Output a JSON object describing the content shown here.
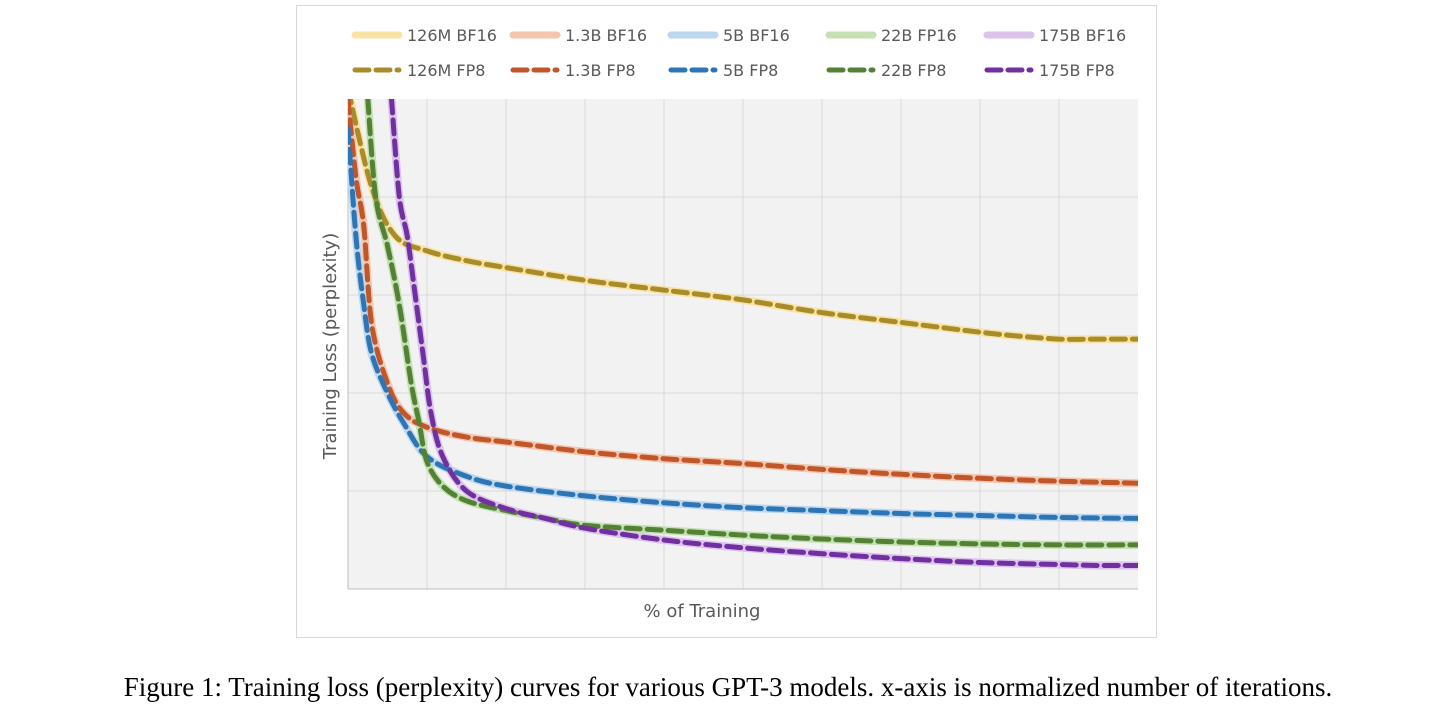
{
  "chart_data": {
    "type": "line",
    "xlabel": "% of Training",
    "ylabel": "Training Loss (perplexity)",
    "xlim": [
      0,
      100
    ],
    "ylim": [
      0,
      5
    ],
    "grid": true,
    "gridlines": {
      "x_count": 10,
      "y_count": 5
    },
    "legend_position": "top",
    "series": [
      {
        "name": "126M BF16",
        "color": "#f8e3a3",
        "style": "solid",
        "x": [
          0,
          3,
          6,
          10,
          15,
          20,
          30,
          40,
          50,
          60,
          70,
          80,
          85,
          90,
          95,
          100
        ],
        "y": [
          5.1,
          4.1,
          3.6,
          3.45,
          3.35,
          3.28,
          3.15,
          3.05,
          2.95,
          2.82,
          2.72,
          2.62,
          2.58,
          2.55,
          2.55,
          2.55
        ]
      },
      {
        "name": "126M FP8",
        "color": "#a88b2a",
        "style": "dashed",
        "x": [
          0,
          3,
          6,
          10,
          15,
          20,
          30,
          40,
          50,
          60,
          70,
          80,
          85,
          90,
          95,
          100
        ],
        "y": [
          5.1,
          4.1,
          3.6,
          3.45,
          3.35,
          3.28,
          3.15,
          3.05,
          2.95,
          2.82,
          2.72,
          2.62,
          2.58,
          2.55,
          2.55,
          2.55
        ]
      },
      {
        "name": "1.3B BF16",
        "color": "#f3c6ad",
        "style": "solid",
        "x": [
          0,
          1,
          2,
          3,
          5,
          7,
          10,
          15,
          20,
          30,
          40,
          50,
          60,
          70,
          80,
          90,
          100
        ],
        "y": [
          5.0,
          4.2,
          3.7,
          2.7,
          2.1,
          1.8,
          1.65,
          1.55,
          1.5,
          1.4,
          1.33,
          1.28,
          1.22,
          1.17,
          1.13,
          1.1,
          1.08
        ]
      },
      {
        "name": "1.3B FP8",
        "color": "#c0562a",
        "style": "dashed",
        "x": [
          0,
          1,
          2,
          3,
          5,
          7,
          10,
          15,
          20,
          30,
          40,
          50,
          60,
          70,
          80,
          90,
          100
        ],
        "y": [
          5.0,
          4.2,
          3.7,
          2.7,
          2.1,
          1.8,
          1.65,
          1.55,
          1.5,
          1.4,
          1.33,
          1.28,
          1.22,
          1.17,
          1.13,
          1.1,
          1.08
        ]
      },
      {
        "name": "5B BF16",
        "color": "#bdd7ee",
        "style": "solid",
        "x": [
          0,
          1,
          2,
          3,
          5,
          7,
          10,
          15,
          20,
          30,
          40,
          50,
          60,
          70,
          80,
          90,
          100
        ],
        "y": [
          4.7,
          3.6,
          2.9,
          2.4,
          2.0,
          1.7,
          1.35,
          1.15,
          1.05,
          0.95,
          0.88,
          0.83,
          0.8,
          0.77,
          0.75,
          0.73,
          0.72
        ]
      },
      {
        "name": "5B FP8",
        "color": "#2e75b6",
        "style": "dashed",
        "x": [
          0,
          1,
          2,
          3,
          5,
          7,
          10,
          15,
          20,
          30,
          40,
          50,
          60,
          70,
          80,
          90,
          100
        ],
        "y": [
          4.7,
          3.6,
          2.9,
          2.4,
          2.0,
          1.7,
          1.35,
          1.15,
          1.05,
          0.95,
          0.88,
          0.83,
          0.8,
          0.77,
          0.75,
          0.73,
          0.72
        ]
      },
      {
        "name": "22B FP16",
        "color": "#c5e0b4",
        "style": "solid",
        "x": [
          2.5,
          3.5,
          5,
          6.5,
          8,
          9,
          10,
          12,
          15,
          20,
          25,
          30,
          40,
          50,
          60,
          70,
          80,
          90,
          100
        ],
        "y": [
          5.0,
          4.0,
          3.5,
          2.9,
          2.1,
          1.7,
          1.3,
          1.05,
          0.9,
          0.8,
          0.72,
          0.65,
          0.6,
          0.55,
          0.51,
          0.48,
          0.46,
          0.45,
          0.45
        ]
      },
      {
        "name": "22B FP8",
        "color": "#548235",
        "style": "dashed",
        "x": [
          2.5,
          3.5,
          5,
          6.5,
          8,
          9,
          10,
          12,
          15,
          20,
          25,
          30,
          40,
          50,
          60,
          70,
          80,
          90,
          100
        ],
        "y": [
          5.0,
          4.0,
          3.5,
          2.9,
          2.1,
          1.7,
          1.3,
          1.05,
          0.9,
          0.8,
          0.72,
          0.65,
          0.6,
          0.55,
          0.51,
          0.48,
          0.46,
          0.45,
          0.45
        ]
      },
      {
        "name": "175B BF16",
        "color": "#dcc3ec",
        "style": "solid",
        "x": [
          5.5,
          6.5,
          7.5,
          8.5,
          9.5,
          10.5,
          12,
          15,
          20,
          25,
          30,
          40,
          50,
          60,
          70,
          80,
          90,
          95,
          100
        ],
        "y": [
          5.0,
          4.0,
          3.6,
          3.0,
          2.4,
          1.8,
          1.35,
          1.0,
          0.82,
          0.72,
          0.62,
          0.5,
          0.42,
          0.36,
          0.31,
          0.27,
          0.25,
          0.24,
          0.24
        ]
      },
      {
        "name": "175B FP8",
        "color": "#7030a0",
        "style": "dashed",
        "x": [
          5.5,
          6.5,
          7.5,
          8.5,
          9.5,
          10.5,
          12,
          15,
          20,
          25,
          30,
          40,
          50,
          60,
          70,
          80,
          90,
          95,
          100
        ],
        "y": [
          5.0,
          4.0,
          3.6,
          3.0,
          2.4,
          1.8,
          1.35,
          1.0,
          0.82,
          0.72,
          0.62,
          0.5,
          0.42,
          0.36,
          0.31,
          0.27,
          0.25,
          0.24,
          0.24
        ]
      }
    ]
  },
  "caption": "Figure 1: Training loss (perplexity) curves for various GPT-3 models. x-axis is normalized number of iterations."
}
